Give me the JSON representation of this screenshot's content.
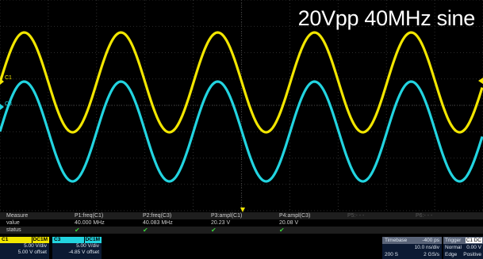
{
  "overlay_title": "20Vpp 40MHz sine",
  "channel_markers": {
    "c1": "C1",
    "c3": "C3"
  },
  "colors": {
    "c1": "#f2e600",
    "c3": "#22d4e0",
    "grid": "#3a3a3a",
    "panel_bg": "#0c1a33",
    "check": "#3cd23c"
  },
  "measure": {
    "row_labels": [
      "Measure",
      "value",
      "status"
    ],
    "params": [
      {
        "name": "P1:freq(C1)",
        "value": "40.000 MHz",
        "status": "✔"
      },
      {
        "name": "P2:freq(C3)",
        "value": "40.083 MHz",
        "status": "✔"
      },
      {
        "name": "P3:ampl(C1)",
        "value": "20.23 V",
        "status": "✔"
      },
      {
        "name": "P4:ampl(C3)",
        "value": "20.08 V",
        "status": "✔"
      },
      {
        "name": "P5:- - -",
        "value": "",
        "status": ""
      },
      {
        "name": "P6:- - -",
        "value": "",
        "status": ""
      }
    ]
  },
  "channels": [
    {
      "name": "C1",
      "coupling": "DC1M",
      "vdiv": "5.00 V/div",
      "offset": "5.00 V offset",
      "color": "#f2e600"
    },
    {
      "name": "C3",
      "coupling": "DC1M",
      "vdiv": "5.00 V/div",
      "offset": "-4.85 V offset",
      "color": "#22d4e0"
    }
  ],
  "timebase": {
    "label": "Timebase",
    "delay": "-400 ps",
    "tdiv": "10.0 ns/div",
    "samples": "200 S",
    "rate": "2 GS/s"
  },
  "trigger": {
    "label": "Trigger",
    "source": "C1",
    "coupling": "DC",
    "mode": "Normal",
    "level": "0.00 V",
    "type": "Edge",
    "slope": "Positive"
  }
}
